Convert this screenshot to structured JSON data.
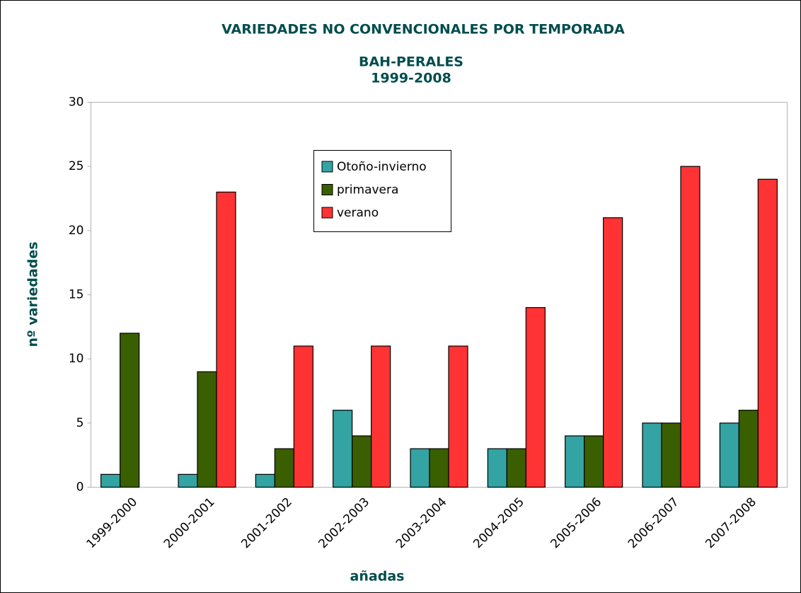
{
  "chart_data": {
    "type": "bar",
    "title": "VARIEDADES NO CONVENCIONALES POR TEMPORADA",
    "subtitle": [
      "BAH-PERALES",
      "1999-2008"
    ],
    "x_label": "añadas",
    "y_label": "nº variedades",
    "categories": [
      "1999-2000",
      "2000-2001",
      "2001-2002",
      "2002-2003",
      "2003-2004",
      "2004-2005",
      "2005-2006",
      "2006-2007",
      "2007-2008"
    ],
    "series": [
      {
        "name": "Otoño-invierno",
        "color": "#33a3a3",
        "values": [
          1,
          1,
          1,
          6,
          3,
          3,
          4,
          5,
          5
        ]
      },
      {
        "name": "primavera",
        "color": "#3a5f00",
        "values": [
          12,
          9,
          3,
          4,
          3,
          3,
          4,
          5,
          6
        ]
      },
      {
        "name": "verano",
        "color": "#ff3333",
        "values": [
          null,
          23,
          11,
          11,
          11,
          14,
          21,
          25,
          24
        ]
      }
    ],
    "ylim": [
      0,
      30
    ],
    "yticks": [
      0,
      5,
      10,
      15,
      20,
      25,
      30
    ],
    "grid": false
  }
}
